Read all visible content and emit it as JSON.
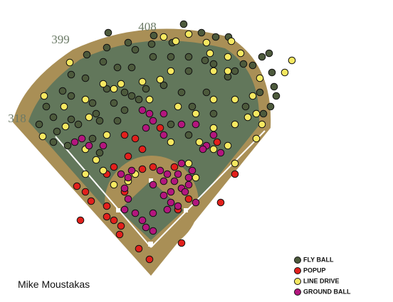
{
  "chart_data": {
    "type": "scatter",
    "title": "Mike Moustakas",
    "annotations": [
      "399",
      "408",
      "318"
    ],
    "xlim": [
      -212,
      340
    ],
    "ylim": [
      -80,
      345
    ],
    "legend": "lower right",
    "series": [
      {
        "name": "FLY BALL",
        "color": "#4d5a3c",
        "x": [
          -60,
          46,
          71,
          91,
          109,
          -62,
          -32,
          -22,
          1,
          4,
          30,
          -90,
          -67,
          -47,
          -27,
          3,
          28,
          53,
          76,
          130,
          143,
          156,
          166,
          170,
          173,
          176,
          -112,
          -92,
          -62,
          -37,
          18,
          53,
          88,
          108,
          -124,
          -112,
          -82,
          -147,
          -137,
          -112,
          -77,
          -52,
          -27,
          -7,
          43,
          78,
          118,
          153,
          168,
          158,
          -157,
          -132,
          -102,
          -72,
          -137,
          -117,
          -82,
          -47,
          -37,
          -17,
          58,
          88,
          133,
          53,
          28,
          -72
        ],
        "y": [
          299,
          311,
          299,
          293,
          293,
          278,
          285,
          275,
          283,
          295,
          285,
          268,
          258,
          250,
          250,
          265,
          265,
          265,
          260,
          255,
          253,
          265,
          270,
          243,
          223,
          210,
          240,
          235,
          220,
          215,
          225,
          245,
          255,
          237,
          217,
          210,
          200,
          195,
          180,
          177,
          185,
          200,
          210,
          220,
          215,
          215,
          245,
          215,
          195,
          185,
          170,
          160,
          170,
          175,
          145,
          140,
          150,
          175,
          190,
          205,
          195,
          185,
          195,
          155,
          170,
          130
        ]
      },
      {
        "name": "POPUP",
        "color": "#e2201c",
        "x": [
          -37,
          -22,
          -12,
          -32,
          -52,
          -62,
          -92,
          -104,
          -84,
          -62,
          -62,
          -52,
          -42,
          -44,
          -17,
          -99,
          -37,
          -12,
          3,
          33,
          53,
          38,
          98,
          43,
          118,
          13,
          93,
          -2
        ],
        "y": [
          155,
          150,
          135,
          125,
          110,
          100,
          75,
          83,
          62,
          55,
          40,
          35,
          27,
          15,
          -5,
          35,
          75,
          107,
          110,
          110,
          65,
          50,
          60,
          3,
          100,
          165,
          145,
          -20
        ]
      },
      {
        "name": "LINE DRIVE",
        "color": "#f6e861",
        "x": [
          18,
          53,
          35,
          78,
          113,
          126,
          108,
          198,
          188,
          153,
          108,
          88,
          83,
          28,
          13,
          -12,
          -42,
          -67,
          -114,
          -150,
          -122,
          -92,
          -52,
          -2,
          38,
          63,
          88,
          118,
          143,
          136,
          148,
          156,
          118,
          88,
          -152,
          -120,
          -87,
          -62,
          -92,
          -77,
          -92,
          -67,
          -52,
          -32,
          -22,
          68,
          88,
          108,
          118,
          63,
          53,
          28,
          148
        ],
        "y": [
          293,
          297,
          287,
          285,
          287,
          270,
          265,
          260,
          243,
          235,
          245,
          245,
          270,
          245,
          233,
          230,
          227,
          227,
          257,
          210,
          195,
          205,
          220,
          205,
          195,
          185,
          205,
          205,
          210,
          180,
          185,
          170,
          170,
          165,
          153,
          167,
          180,
          155,
          135,
          120,
          100,
          105,
          85,
          90,
          100,
          145,
          135,
          140,
          115,
          95,
          115,
          145,
          150
        ]
      },
      {
        "name": "GROUND BALL",
        "color": "#b3167e",
        "x": [
          -107,
          -97,
          -87,
          -67,
          -12,
          -2,
          18,
          3,
          -7,
          18,
          43,
          63,
          88,
          78,
          73,
          98,
          -42,
          -32,
          -27,
          -37,
          -32,
          -37,
          -22,
          -12,
          3,
          -7,
          3,
          23,
          33,
          43,
          28,
          18,
          48,
          53,
          58,
          38,
          13,
          28,
          38,
          23,
          3,
          43,
          63,
          53,
          18
        ],
        "y": [
          145,
          150,
          140,
          140,
          190,
          185,
          185,
          175,
          165,
          155,
          170,
          170,
          155,
          140,
          135,
          130,
          100,
          95,
          105,
          80,
          65,
          50,
          45,
          35,
          45,
          25,
          20,
          100,
          90,
          80,
          75,
          70,
          75,
          95,
          105,
          100,
          105,
          60,
          55,
          50,
          85,
          115,
          60,
          85,
          90
        ]
      }
    ]
  }
}
